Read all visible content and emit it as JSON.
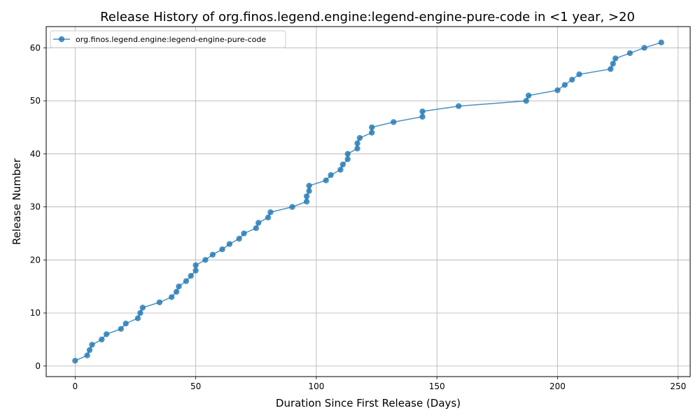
{
  "chart_data": {
    "type": "line",
    "title": "Release History of org.finos.legend.engine:legend-engine-pure-code in <1 year, >20",
    "xlabel": "Duration Since First Release (Days)",
    "ylabel": "Release Number",
    "xlim": [
      -12,
      255
    ],
    "ylim": [
      -2,
      64
    ],
    "xticks": [
      0,
      50,
      100,
      150,
      200,
      250
    ],
    "yticks": [
      0,
      10,
      20,
      30,
      40,
      50,
      60
    ],
    "grid": true,
    "legend_position": "top-left",
    "series": [
      {
        "name": "org.finos.legend.engine:legend-engine-pure-code",
        "color": "#1f77b4",
        "marker": "circle",
        "points": [
          [
            0,
            1
          ],
          [
            5,
            2
          ],
          [
            6,
            3
          ],
          [
            7,
            4
          ],
          [
            11,
            5
          ],
          [
            13,
            6
          ],
          [
            19,
            7
          ],
          [
            21,
            8
          ],
          [
            26,
            9
          ],
          [
            27,
            10
          ],
          [
            28,
            11
          ],
          [
            35,
            12
          ],
          [
            40,
            13
          ],
          [
            42,
            14
          ],
          [
            43,
            15
          ],
          [
            46,
            16
          ],
          [
            48,
            17
          ],
          [
            50,
            18
          ],
          [
            50,
            19
          ],
          [
            54,
            20
          ],
          [
            57,
            21
          ],
          [
            61,
            22
          ],
          [
            64,
            23
          ],
          [
            68,
            24
          ],
          [
            70,
            25
          ],
          [
            75,
            26
          ],
          [
            76,
            27
          ],
          [
            80,
            28
          ],
          [
            81,
            29
          ],
          [
            90,
            30
          ],
          [
            96,
            31
          ],
          [
            96,
            32
          ],
          [
            97,
            33
          ],
          [
            97,
            34
          ],
          [
            104,
            35
          ],
          [
            106,
            36
          ],
          [
            110,
            37
          ],
          [
            111,
            38
          ],
          [
            113,
            39
          ],
          [
            113,
            40
          ],
          [
            117,
            41
          ],
          [
            117,
            42
          ],
          [
            118,
            43
          ],
          [
            123,
            44
          ],
          [
            123,
            45
          ],
          [
            132,
            46
          ],
          [
            144,
            47
          ],
          [
            144,
            48
          ],
          [
            159,
            49
          ],
          [
            187,
            50
          ],
          [
            188,
            51
          ],
          [
            200,
            52
          ],
          [
            203,
            53
          ],
          [
            206,
            54
          ],
          [
            209,
            55
          ],
          [
            222,
            56
          ],
          [
            223,
            57
          ],
          [
            224,
            58
          ],
          [
            230,
            59
          ],
          [
            236,
            60
          ],
          [
            243,
            61
          ]
        ]
      }
    ]
  }
}
